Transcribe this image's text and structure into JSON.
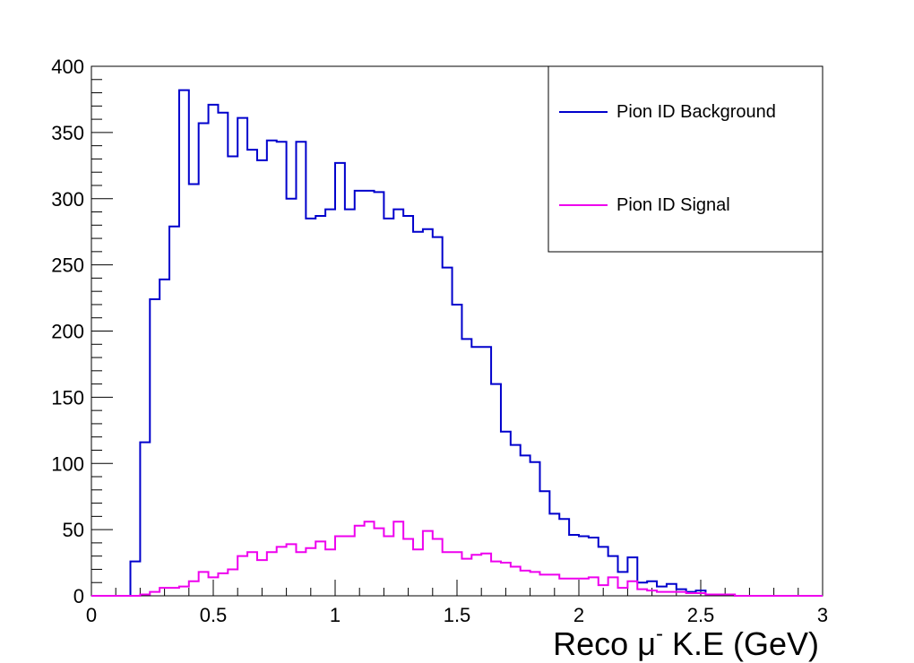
{
  "chart_data": {
    "type": "histogram",
    "title": "",
    "xlabel_main": "Reco μ",
    "xlabel_sup": "-",
    "xlabel_tail": " K.E (GeV)",
    "ylabel": "",
    "xlim": [
      0,
      3
    ],
    "ylim": [
      0,
      400
    ],
    "x_ticks": [
      0,
      0.5,
      1,
      1.5,
      2,
      2.5,
      3
    ],
    "x_tick_labels": [
      "0",
      "0.5",
      "1",
      "1.5",
      "2",
      "2.5",
      "3"
    ],
    "y_ticks": [
      0,
      50,
      100,
      150,
      200,
      250,
      300,
      350,
      400
    ],
    "y_tick_labels": [
      "0",
      "50",
      "100",
      "150",
      "200",
      "250",
      "300",
      "350",
      "400"
    ],
    "grid": false,
    "legend_position": "top-right",
    "bin_width": 0.04,
    "series": [
      {
        "name": "Pion ID Background",
        "color": "#0000cc",
        "values": [
          0,
          0,
          0,
          0,
          26,
          116,
          224,
          239,
          279,
          382,
          311,
          357,
          371,
          365,
          332,
          361,
          337,
          329,
          344,
          343,
          300,
          343,
          285,
          287,
          292,
          327,
          292,
          306,
          306,
          305,
          285,
          292,
          287,
          275,
          277,
          271,
          248,
          220,
          194,
          188,
          188,
          160,
          124,
          114,
          106,
          101,
          79,
          62,
          58,
          46,
          45,
          44,
          37,
          30,
          18,
          29,
          10,
          11,
          7,
          9,
          5,
          3,
          4,
          1,
          1,
          1,
          0,
          0,
          0,
          0,
          0,
          0,
          0,
          0,
          0
        ]
      },
      {
        "name": "Pion ID Signal",
        "color": "#ee00ee",
        "values": [
          0,
          0,
          0,
          0,
          0,
          1,
          3,
          6,
          6,
          7,
          11,
          18,
          14,
          17,
          20,
          30,
          33,
          27,
          33,
          37,
          39,
          33,
          36,
          41,
          35,
          45,
          45,
          53,
          56,
          51,
          45,
          56,
          43,
          35,
          49,
          43,
          33,
          33,
          28,
          31,
          32,
          26,
          25,
          22,
          19,
          18,
          16,
          16,
          13,
          13,
          13,
          14,
          8,
          14,
          6,
          11,
          5,
          4,
          3,
          3,
          3,
          2,
          2,
          1,
          1,
          1,
          0,
          0,
          0,
          0,
          0,
          0,
          0,
          0,
          0
        ]
      }
    ]
  }
}
